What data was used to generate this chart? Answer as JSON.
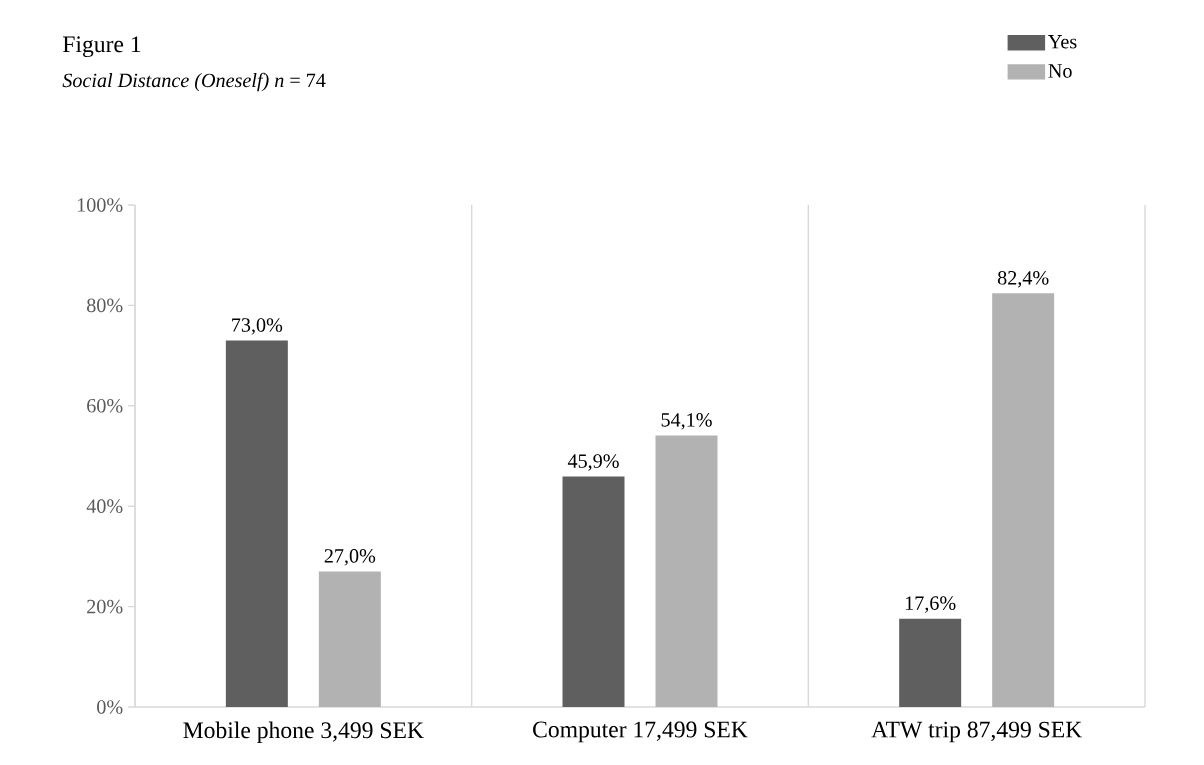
{
  "chart_data": {
    "type": "bar",
    "title": "Figure 1",
    "subtitle": "*Social Distance (Oneself) n* = 74",
    "categories": [
      "Mobile phone 3,499 SEK",
      "Computer 17,499 SEK",
      "ATW trip 87,499 SEK"
    ],
    "series": [
      {
        "name": "Yes",
        "color": "#5f5f5f",
        "values": [
          73.0,
          45.9,
          17.6
        ],
        "value_labels": [
          "73,0%",
          "45,9%",
          "17,6%"
        ]
      },
      {
        "name": "No",
        "color": "#b2b2b2",
        "values": [
          27.0,
          54.1,
          82.4
        ],
        "value_labels": [
          "27,0%",
          "54,1%",
          "82,4%"
        ]
      }
    ],
    "ylim": [
      0,
      100
    ],
    "yticks": [
      {
        "value": 0,
        "label": "0%"
      },
      {
        "value": 20,
        "label": "20%"
      },
      {
        "value": 40,
        "label": "40%"
      },
      {
        "value": 60,
        "label": "60%"
      },
      {
        "value": 80,
        "label": "80%"
      },
      {
        "value": 100,
        "label": "100%"
      }
    ],
    "grid": "x",
    "legend": "top right"
  }
}
